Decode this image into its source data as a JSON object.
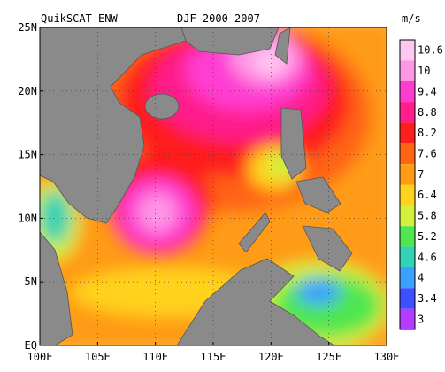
{
  "title": "QuikSCAT ENW",
  "period": "DJF 2000-2007",
  "colorbar": {
    "unit": "m/s",
    "levels": [
      10.6,
      10,
      9.4,
      8.8,
      8.2,
      7.6,
      7,
      6.4,
      5.8,
      5.2,
      4.6,
      4,
      3.4,
      3
    ],
    "colors": [
      "#ffc8f0",
      "#ff96e6",
      "#ff3cd2",
      "#ff1e8c",
      "#ff1e1e",
      "#ff6414",
      "#ff9b14",
      "#ffd21e",
      "#d2f03c",
      "#50e650",
      "#32d2b4",
      "#3ca0ff",
      "#3c50ff",
      "#b43cff"
    ]
  },
  "axes": {
    "lat": [
      "25N",
      "20N",
      "15N",
      "10N",
      "5N",
      "EQ"
    ],
    "lon": [
      "100E",
      "105E",
      "110E",
      "115E",
      "120E",
      "125E",
      "130E"
    ]
  }
}
